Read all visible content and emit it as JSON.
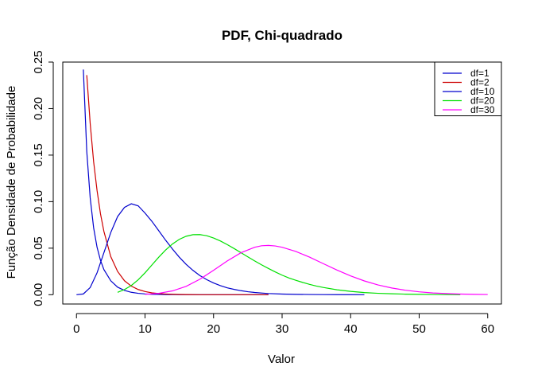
{
  "chart_data": {
    "type": "line",
    "title": "PDF, Chi-quadrado",
    "xlabel": "Valor",
    "ylabel": "Função Densidade de Probabilidade",
    "xlim": [
      -2,
      62
    ],
    "ylim": [
      -0.01,
      0.25
    ],
    "xticks": [
      "0",
      "10",
      "20",
      "30",
      "40",
      "50",
      "60"
    ],
    "xtick_values": [
      0,
      10,
      20,
      30,
      40,
      50,
      60
    ],
    "yticks": [
      "0.00",
      "0.05",
      "0.10",
      "0.15",
      "0.20",
      "0.25"
    ],
    "ytick_values": [
      0,
      0.05,
      0.1,
      0.15,
      0.2,
      0.25
    ],
    "legend_position": "top-right",
    "series": [
      {
        "name": "df=1",
        "color": "#0000cd",
        "x": [
          1,
          1.5,
          2,
          2.5,
          3,
          3.5,
          4,
          5,
          6,
          7,
          8,
          9,
          10,
          11,
          12,
          13,
          14,
          15,
          16,
          17,
          18,
          19,
          20,
          21,
          22,
          23,
          24,
          25,
          26,
          27,
          28
        ],
        "y": [
          0.242,
          0.154,
          0.104,
          0.072,
          0.051,
          0.037,
          0.027,
          0.015,
          0.0081,
          0.0046,
          0.0026,
          0.0015,
          0.00085,
          0.0005,
          0.0003,
          0.00018,
          0.0001,
          6e-05,
          0,
          0,
          0,
          0,
          0,
          0,
          0,
          0,
          0,
          0,
          0,
          0,
          0
        ]
      },
      {
        "name": "df=2",
        "color": "#cd0000",
        "x": [
          1.5,
          2,
          2.5,
          3,
          3.5,
          4,
          5,
          6,
          7,
          8,
          9,
          10,
          11,
          12,
          13,
          14,
          15,
          16,
          18,
          20,
          22,
          24,
          26,
          28
        ],
        "y": [
          0.236,
          0.184,
          0.143,
          0.112,
          0.087,
          0.068,
          0.041,
          0.025,
          0.015,
          0.0092,
          0.0056,
          0.0034,
          0.002,
          0.0012,
          0.00075,
          0.00046,
          0.00028,
          0.00017,
          0,
          0,
          0,
          0,
          0,
          0
        ]
      },
      {
        "name": "df=10",
        "color": "#0000cd",
        "x": [
          0,
          1,
          2,
          3,
          4,
          5,
          6,
          7,
          8,
          9,
          10,
          11,
          12,
          13,
          14,
          15,
          16,
          17,
          18,
          19,
          20,
          21,
          22,
          23,
          24,
          25,
          26,
          27,
          28,
          30,
          32,
          34,
          36,
          38,
          40,
          42
        ],
        "y": [
          0,
          0.0008,
          0.0077,
          0.0235,
          0.0451,
          0.0668,
          0.084,
          0.0938,
          0.0977,
          0.0955,
          0.0877,
          0.0789,
          0.0688,
          0.0586,
          0.0491,
          0.0403,
          0.0326,
          0.0261,
          0.0206,
          0.0162,
          0.0126,
          0.0097,
          0.0074,
          0.0057,
          0.0043,
          0.0032,
          0.0024,
          0.0018,
          0.0013,
          0.0007,
          0.0004,
          0.0002,
          0.0001,
          5e-05,
          2e-05,
          0
        ]
      },
      {
        "name": "df=20",
        "color": "#00e000",
        "x": [
          6,
          7,
          8,
          9,
          10,
          11,
          12,
          13,
          14,
          15,
          16,
          17,
          18,
          19,
          20,
          21,
          22,
          23,
          24,
          25,
          26,
          27,
          28,
          29,
          30,
          31,
          32,
          33,
          34,
          35,
          36,
          38,
          40,
          42,
          44,
          46,
          48,
          50,
          52,
          54,
          56
        ],
        "y": [
          0.0026,
          0.0055,
          0.0099,
          0.016,
          0.0235,
          0.0319,
          0.0403,
          0.048,
          0.0545,
          0.0595,
          0.0628,
          0.0645,
          0.0646,
          0.0634,
          0.0609,
          0.0577,
          0.0538,
          0.0496,
          0.0452,
          0.0407,
          0.0363,
          0.0321,
          0.0282,
          0.0245,
          0.021,
          0.018,
          0.0155,
          0.0132,
          0.0111,
          0.0093,
          0.0078,
          0.0053,
          0.0036,
          0.0023,
          0.0015,
          0.001,
          0.0006,
          0.0004,
          0.0002,
          0.0001,
          0
        ]
      },
      {
        "name": "df=30",
        "color": "#ff00ff",
        "x": [
          10,
          12,
          14,
          16,
          18,
          20,
          22,
          24,
          26,
          27,
          28,
          29,
          30,
          32,
          34,
          36,
          38,
          40,
          42,
          44,
          46,
          48,
          50,
          52,
          54,
          56,
          58,
          60
        ],
        "y": [
          0.0004,
          0.0015,
          0.0041,
          0.009,
          0.0166,
          0.0262,
          0.0363,
          0.0451,
          0.051,
          0.0526,
          0.053,
          0.0524,
          0.051,
          0.0465,
          0.0404,
          0.0334,
          0.0265,
          0.0202,
          0.0148,
          0.0105,
          0.0072,
          0.0048,
          0.0031,
          0.0019,
          0.0012,
          0.0007,
          0.0004,
          0.0002
        ]
      }
    ]
  }
}
